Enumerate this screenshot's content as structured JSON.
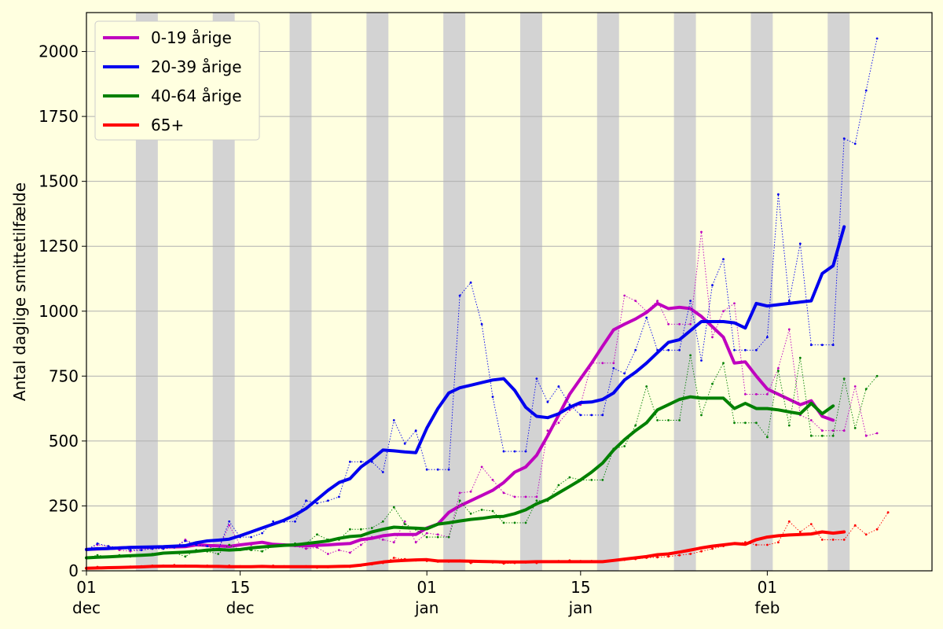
{
  "chart_data": {
    "type": "line",
    "ylabel": "Antal daglige smittetilfælde",
    "ylim": [
      0,
      2150
    ],
    "xlim": [
      "2020-12-01",
      "2021-02-16"
    ],
    "yticks": [
      0,
      250,
      500,
      750,
      1000,
      1250,
      1500,
      1750,
      2000
    ],
    "xticks": [
      {
        "date": "2020-12-01",
        "day": "01",
        "month": "dec"
      },
      {
        "date": "2020-12-15",
        "day": "15",
        "month": "dec"
      },
      {
        "date": "2021-01-01",
        "day": "01",
        "month": "jan"
      },
      {
        "date": "2021-01-15",
        "day": "15",
        "month": "jan"
      },
      {
        "date": "2021-02-01",
        "day": "01",
        "month": "feb"
      }
    ],
    "grid": "horizontal",
    "legend_position": "top-left",
    "weekend_shading": [
      "2020-12-05",
      "2020-12-12",
      "2020-12-19",
      "2020-12-26",
      "2021-01-02",
      "2021-01-09",
      "2021-01-16",
      "2021-01-23",
      "2021-01-30",
      "2021-02-06"
    ],
    "colors": {
      "background": "#ffffe0",
      "weekend": "#d3d3d3",
      "grid": "#b0b0b0"
    },
    "series": [
      {
        "name": "0-19 årige",
        "color": "#bf00bf",
        "start": "2020-12-01",
        "daily": [
          80,
          100,
          95,
          80,
          75,
          80,
          85,
          85,
          90,
          120,
          100,
          95,
          80,
          175,
          100,
          100,
          110,
          100,
          100,
          95,
          85,
          90,
          65,
          80,
          70,
          100,
          130,
          120,
          110,
          190,
          110,
          145,
          140,
          130,
          300,
          305,
          400,
          350,
          300,
          285,
          285,
          285,
          540,
          570,
          620,
          640,
          800,
          800,
          800,
          1060,
          1040,
          1000,
          1040,
          950,
          950,
          950,
          1305,
          900,
          1000,
          1030,
          680,
          680,
          680,
          780,
          930,
          600,
          580,
          540,
          540,
          540,
          710,
          520,
          530
        ],
        "avg": [
          82,
          84,
          86,
          88,
          90,
          90,
          91,
          92,
          92,
          93,
          100,
          98,
          96,
          94,
          100,
          105,
          110,
          102,
          100,
          98,
          96,
          98,
          100,
          103,
          105,
          120,
          125,
          135,
          140,
          140,
          140,
          165,
          180,
          225,
          250,
          270,
          290,
          310,
          340,
          380,
          400,
          445,
          520,
          600,
          680,
          740,
          800,
          865,
          928,
          950,
          970,
          995,
          1030,
          1010,
          1015,
          1010,
          980,
          940,
          900,
          800,
          805,
          750,
          700,
          680,
          660,
          640,
          655,
          595,
          580
        ]
      },
      {
        "name": "20-39 årige",
        "color": "#0000ee",
        "start": "2020-12-01",
        "daily": [
          80,
          105,
          95,
          90,
          80,
          80,
          85,
          85,
          90,
          115,
          100,
          95,
          80,
          190,
          130,
          130,
          145,
          190,
          190,
          190,
          270,
          260,
          270,
          285,
          420,
          420,
          420,
          380,
          580,
          490,
          540,
          390,
          390,
          390,
          1060,
          1110,
          950,
          670,
          460,
          460,
          460,
          740,
          650,
          710,
          640,
          600,
          600,
          600,
          780,
          760,
          850,
          975,
          850,
          850,
          850,
          1040,
          810,
          1100,
          1200,
          850,
          850,
          850,
          900,
          1450,
          1040,
          1260,
          870,
          870,
          870,
          1665,
          1645,
          1850,
          2050
        ],
        "avg": [
          82,
          85,
          86,
          88,
          90,
          91,
          92,
          93,
          95,
          97,
          108,
          115,
          118,
          122,
          135,
          150,
          165,
          180,
          195,
          215,
          240,
          275,
          310,
          340,
          355,
          400,
          430,
          465,
          462,
          458,
          455,
          550,
          625,
          685,
          705,
          715,
          725,
          735,
          740,
          695,
          630,
          595,
          590,
          605,
          630,
          648,
          650,
          660,
          685,
          735,
          765,
          800,
          840,
          880,
          890,
          925,
          960,
          960,
          960,
          955,
          935,
          1030,
          1020,
          1025,
          1030,
          1035,
          1040,
          1145,
          1175,
          1325
        ]
      },
      {
        "name": "40-64 årige",
        "color": "#008000",
        "start": "2020-12-01",
        "daily": [
          50,
          60,
          55,
          60,
          55,
          60,
          65,
          70,
          70,
          55,
          80,
          75,
          65,
          100,
          80,
          80,
          75,
          95,
          100,
          105,
          105,
          140,
          120,
          120,
          160,
          160,
          165,
          190,
          245,
          180,
          160,
          130,
          130,
          130,
          270,
          220,
          235,
          230,
          185,
          185,
          185,
          270,
          270,
          330,
          360,
          350,
          350,
          350,
          470,
          480,
          560,
          710,
          580,
          580,
          580,
          830,
          600,
          720,
          800,
          570,
          570,
          570,
          515,
          770,
          560,
          820,
          520,
          520,
          520,
          740,
          550,
          700,
          750
        ],
        "avg": [
          50,
          52,
          54,
          56,
          58,
          60,
          62,
          68,
          70,
          72,
          75,
          80,
          82,
          80,
          82,
          88,
          92,
          95,
          98,
          100,
          105,
          110,
          115,
          125,
          132,
          135,
          150,
          160,
          168,
          166,
          164,
          162,
          180,
          185,
          192,
          198,
          202,
          208,
          210,
          220,
          235,
          258,
          275,
          300,
          325,
          350,
          380,
          415,
          465,
          505,
          540,
          570,
          620,
          640,
          660,
          670,
          665,
          665,
          665,
          625,
          645,
          625,
          625,
          620,
          612,
          605,
          645,
          605,
          635
        ]
      },
      {
        "name": "65+",
        "color": "#ff0000",
        "start": "2020-12-01",
        "daily": [
          10,
          15,
          12,
          14,
          16,
          18,
          20,
          20,
          22,
          20,
          18,
          20,
          15,
          20,
          18,
          16,
          18,
          20,
          18,
          15,
          18,
          12,
          14,
          16,
          15,
          20,
          25,
          30,
          50,
          45,
          40,
          38,
          35,
          35,
          40,
          30,
          35,
          32,
          28,
          30,
          32,
          30,
          35,
          38,
          40,
          38,
          38,
          36,
          40,
          42,
          45,
          50,
          52,
          55,
          60,
          65,
          75,
          85,
          95,
          105,
          110,
          100,
          100,
          110,
          190,
          150,
          180,
          120,
          120,
          120,
          175,
          140,
          160,
          225
        ],
        "avg": [
          10,
          11,
          12,
          13,
          14,
          15,
          17,
          18,
          18,
          18,
          18,
          17,
          17,
          16,
          16,
          16,
          17,
          16,
          16,
          16,
          16,
          16,
          16,
          17,
          18,
          22,
          28,
          34,
          38,
          40,
          42,
          43,
          38,
          38,
          38,
          37,
          36,
          35,
          34,
          34,
          34,
          35,
          35,
          35,
          35,
          35,
          35,
          35,
          40,
          45,
          50,
          55,
          62,
          65,
          72,
          80,
          88,
          95,
          100,
          105,
          102,
          120,
          130,
          135,
          138,
          140,
          142,
          150,
          145,
          150
        ]
      }
    ]
  }
}
